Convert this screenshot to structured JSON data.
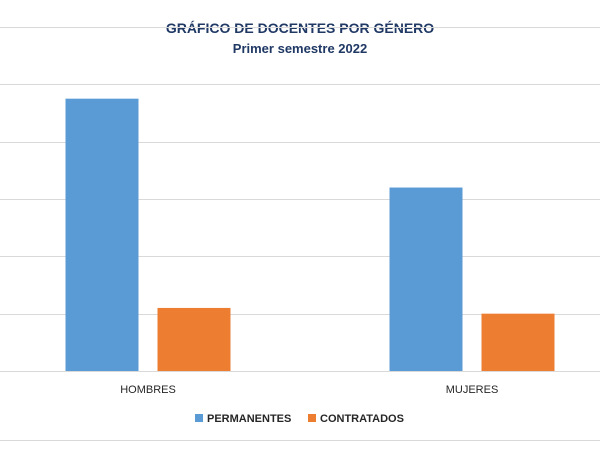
{
  "chart_data": {
    "type": "bar",
    "title": "GRÁFICO DE DOCENTES POR GÉNERO",
    "subtitle": "Primer semestre 2022",
    "categories": [
      "HOMBRES",
      "MUJERES"
    ],
    "series": [
      {
        "name": "PERMANENTES",
        "values": [
          95,
          64
        ],
        "color": "#5b9bd5"
      },
      {
        "name": "CONTRATADOS",
        "values": [
          22,
          20
        ],
        "color": "#ed7d31"
      }
    ],
    "ylim": [
      0,
      120
    ],
    "y_gridlines": [
      20,
      40,
      60,
      80,
      100,
      120
    ],
    "grid": true,
    "legend_position": "bottom",
    "gridline_color": "#d9d9d9",
    "text_color": "#262626",
    "title_color": "#1f3864"
  }
}
